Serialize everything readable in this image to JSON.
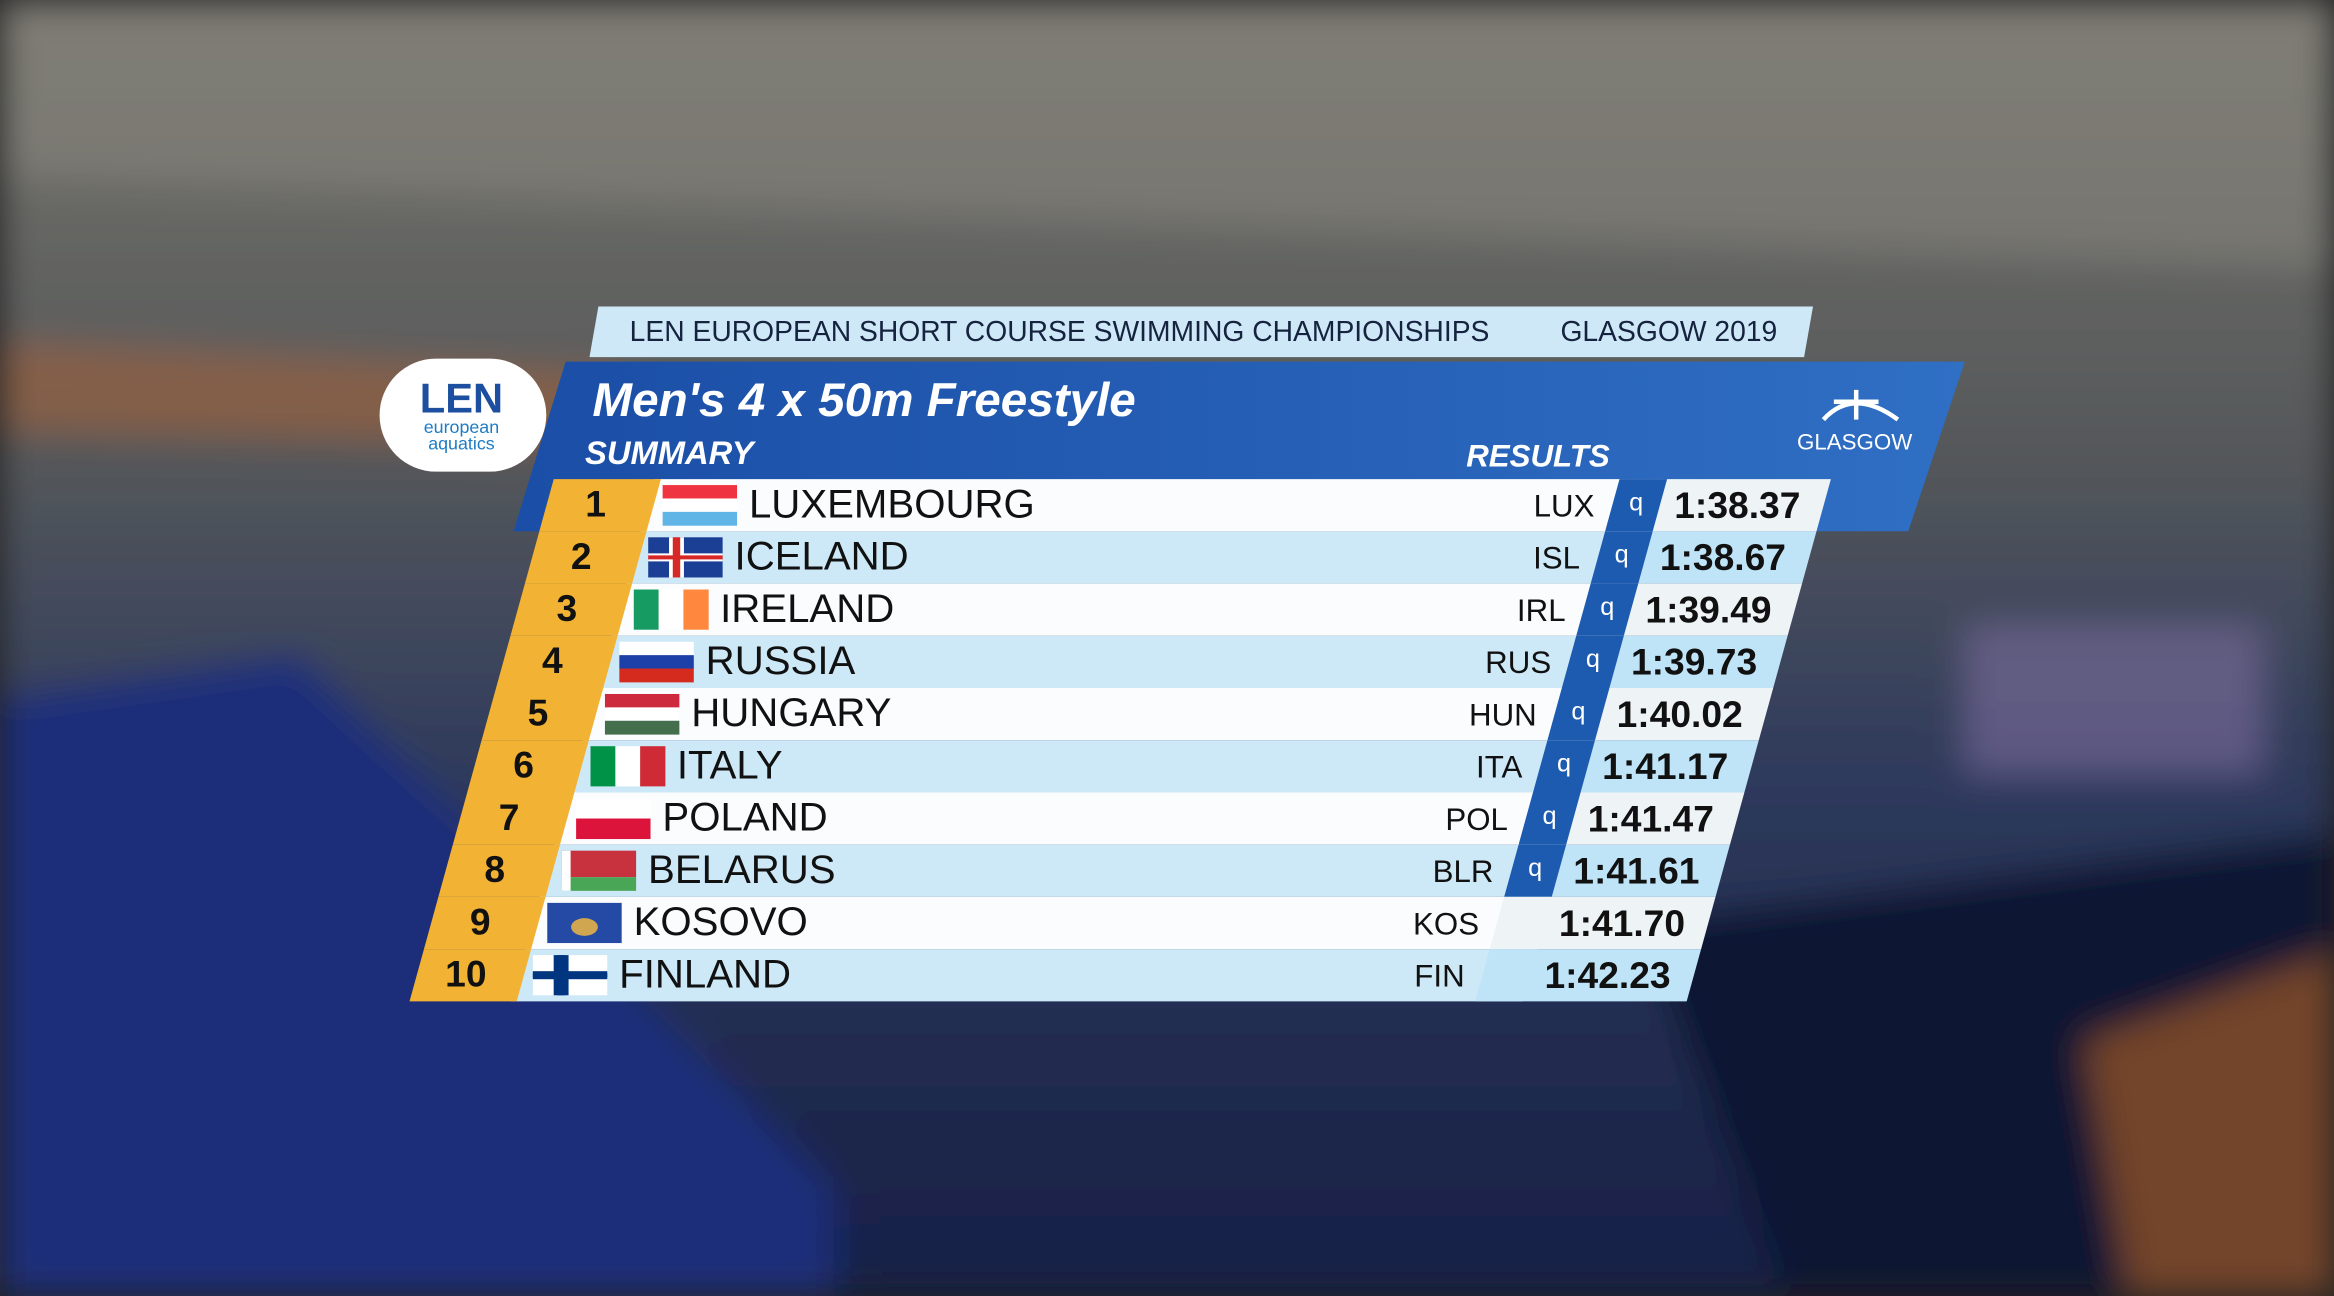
{
  "header": {
    "event": "LEN EUROPEAN SHORT COURSE SWIMMING CHAMPIONSHIPS",
    "location": "GLASGOW 2019"
  },
  "logo": {
    "name": "LEN",
    "line1": "european",
    "line2": "aquatics"
  },
  "brand": "GLASGOW",
  "title": "Men's 4 x 50m Freestyle",
  "subtitle": "SUMMARY",
  "results_label": "RESULTS",
  "rows": [
    {
      "rank": "1",
      "country": "LUXEMBOURG",
      "code": "LUX",
      "q": "q",
      "time": "1:38.37"
    },
    {
      "rank": "2",
      "country": "ICELAND",
      "code": "ISL",
      "q": "q",
      "time": "1:38.67"
    },
    {
      "rank": "3",
      "country": "IRELAND",
      "code": "IRL",
      "q": "q",
      "time": "1:39.49"
    },
    {
      "rank": "4",
      "country": "RUSSIA",
      "code": "RUS",
      "q": "q",
      "time": "1:39.73"
    },
    {
      "rank": "5",
      "country": "HUNGARY",
      "code": "HUN",
      "q": "q",
      "time": "1:40.02"
    },
    {
      "rank": "6",
      "country": "ITALY",
      "code": "ITA",
      "q": "q",
      "time": "1:41.17"
    },
    {
      "rank": "7",
      "country": "POLAND",
      "code": "POL",
      "q": "q",
      "time": "1:41.47"
    },
    {
      "rank": "8",
      "country": "BELARUS",
      "code": "BLR",
      "q": "q",
      "time": "1:41.61"
    },
    {
      "rank": "9",
      "country": "KOSOVO",
      "code": "KOS",
      "time": "1:41.70"
    },
    {
      "rank": "10",
      "country": "FINLAND",
      "code": "FIN",
      "time": "1:42.23"
    }
  ]
}
